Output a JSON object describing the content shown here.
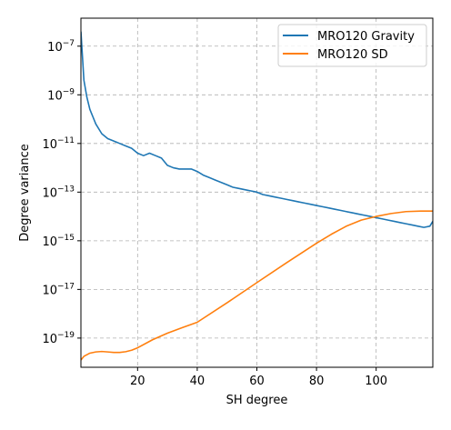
{
  "chart_data": {
    "type": "line",
    "xlabel": "SH degree",
    "ylabel": "Degree variance",
    "xlim": [
      1,
      119
    ],
    "ylim_log10": [
      -20.2,
      -5.85
    ],
    "yscale": "log",
    "grid": true,
    "legend_position": "top-right",
    "x_ticks": [
      {
        "value": 20,
        "label": "20"
      },
      {
        "value": 40,
        "label": "40"
      },
      {
        "value": 60,
        "label": "60"
      },
      {
        "value": 80,
        "label": "80"
      },
      {
        "value": 100,
        "label": "100"
      }
    ],
    "y_ticks": [
      {
        "exp": -7,
        "base": "10",
        "sup": "−7"
      },
      {
        "exp": -9,
        "base": "10",
        "sup": "−9"
      },
      {
        "exp": -11,
        "base": "10",
        "sup": "−11"
      },
      {
        "exp": -13,
        "base": "10",
        "sup": "−13"
      },
      {
        "exp": -15,
        "base": "10",
        "sup": "−15"
      },
      {
        "exp": -17,
        "base": "10",
        "sup": "−17"
      },
      {
        "exp": -19,
        "base": "10",
        "sup": "−19"
      }
    ],
    "series": [
      {
        "name": "MRO120 Gravity",
        "color": "#1f77b4",
        "x": [
          1,
          2,
          3,
          4,
          5,
          6,
          8,
          10,
          12,
          14,
          16,
          18,
          20,
          22,
          24,
          26,
          28,
          30,
          32,
          34,
          36,
          38,
          40,
          42,
          44,
          46,
          48,
          50,
          52,
          54,
          56,
          58,
          60,
          62,
          64,
          66,
          68,
          70,
          72,
          74,
          76,
          78,
          80,
          82,
          84,
          86,
          88,
          90,
          92,
          94,
          96,
          98,
          100,
          102,
          104,
          106,
          108,
          110,
          112,
          114,
          116,
          118,
          119
        ],
        "log10_y": [
          -6.4,
          -8.4,
          -9.1,
          -9.6,
          -9.9,
          -10.2,
          -10.6,
          -10.8,
          -10.9,
          -11.0,
          -11.1,
          -11.2,
          -11.4,
          -11.5,
          -11.4,
          -11.5,
          -11.6,
          -11.9,
          -12.0,
          -12.05,
          -12.05,
          -12.05,
          -12.15,
          -12.3,
          -12.4,
          -12.5,
          -12.6,
          -12.7,
          -12.8,
          -12.85,
          -12.9,
          -12.95,
          -13.0,
          -13.1,
          -13.15,
          -13.2,
          -13.25,
          -13.3,
          -13.35,
          -13.4,
          -13.45,
          -13.5,
          -13.55,
          -13.6,
          -13.65,
          -13.7,
          -13.75,
          -13.8,
          -13.85,
          -13.9,
          -13.95,
          -14.0,
          -14.05,
          -14.1,
          -14.15,
          -14.2,
          -14.25,
          -14.3,
          -14.35,
          -14.4,
          -14.45,
          -14.4,
          -14.2
        ]
      },
      {
        "name": "MRO120 SD",
        "color": "#ff7f0e",
        "x": [
          1,
          2,
          4,
          6,
          8,
          10,
          12,
          14,
          16,
          18,
          20,
          25,
          30,
          35,
          40,
          50,
          60,
          70,
          80,
          85,
          90,
          95,
          100,
          105,
          110,
          115,
          119
        ],
        "log10_y": [
          -19.9,
          -19.75,
          -19.62,
          -19.57,
          -19.55,
          -19.57,
          -19.59,
          -19.59,
          -19.56,
          -19.5,
          -19.4,
          -19.07,
          -18.8,
          -18.57,
          -18.35,
          -17.55,
          -16.72,
          -15.9,
          -15.1,
          -14.73,
          -14.4,
          -14.15,
          -14.0,
          -13.88,
          -13.8,
          -13.78,
          -13.78
        ]
      }
    ]
  }
}
